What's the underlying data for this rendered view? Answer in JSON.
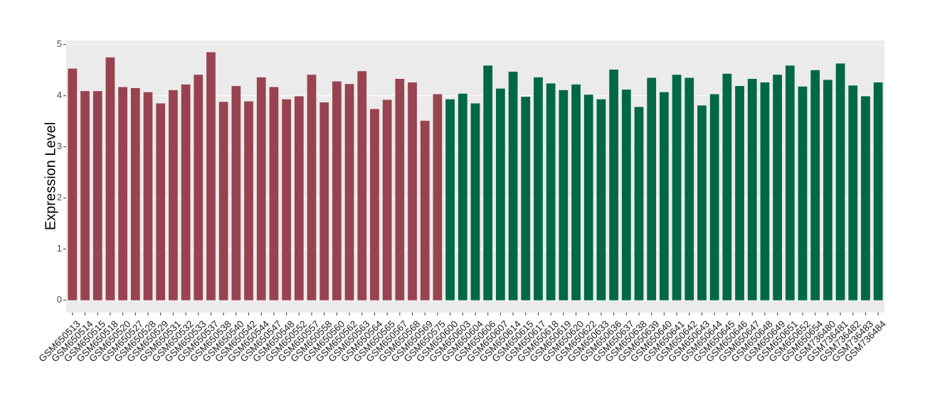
{
  "chart_data": {
    "type": "bar",
    "y_label": "Expression Level",
    "categories": [
      "GSM650513",
      "GSM650514",
      "GSM650515",
      "GSM650518",
      "GSM650520",
      "GSM650527",
      "GSM650528",
      "GSM650529",
      "GSM650531",
      "GSM650532",
      "GSM650533",
      "GSM650537",
      "GSM650538",
      "GSM650540",
      "GSM650542",
      "GSM650544",
      "GSM650547",
      "GSM650548",
      "GSM650552",
      "GSM650557",
      "GSM650558",
      "GSM650560",
      "GSM650562",
      "GSM650563",
      "GSM650564",
      "GSM650565",
      "GSM650567",
      "GSM650568",
      "GSM650569",
      "GSM650575",
      "GSM650600",
      "GSM650603",
      "GSM650604",
      "GSM650606",
      "GSM650607",
      "GSM650614",
      "GSM650615",
      "GSM650617",
      "GSM650618",
      "GSM650619",
      "GSM650620",
      "GSM650622",
      "GSM650633",
      "GSM650636",
      "GSM650637",
      "GSM650638",
      "GSM650639",
      "GSM650640",
      "GSM650641",
      "GSM650642",
      "GSM650643",
      "GSM650644",
      "GSM650645",
      "GSM650646",
      "GSM650647",
      "GSM650648",
      "GSM650649",
      "GSM650651",
      "GSM650652",
      "GSM650654",
      "GSM736480",
      "GSM736481",
      "GSM736482",
      "GSM736483",
      "GSM736484"
    ],
    "series": [
      {
        "color": "#994350",
        "values": [
          4.53,
          4.09,
          4.09,
          4.75,
          4.17,
          4.15,
          4.07,
          3.85,
          4.11,
          4.22,
          4.41,
          4.85,
          3.88,
          4.19,
          3.89,
          4.36,
          4.17,
          3.93,
          3.99,
          4.41,
          3.87,
          4.28,
          4.23,
          4.48,
          3.74,
          3.92,
          4.33,
          4.26,
          3.51,
          4.03,
          null,
          null,
          null,
          null,
          null,
          null,
          null,
          null,
          null,
          null,
          null,
          null,
          null,
          null,
          null,
          null,
          null,
          null,
          null,
          null,
          null,
          null,
          null,
          null,
          null,
          null,
          null,
          null,
          null,
          null,
          null,
          null,
          null,
          null,
          null
        ]
      },
      {
        "color": "#006846",
        "values": [
          null,
          null,
          null,
          null,
          null,
          null,
          null,
          null,
          null,
          null,
          null,
          null,
          null,
          null,
          null,
          null,
          null,
          null,
          null,
          null,
          null,
          null,
          null,
          null,
          null,
          null,
          null,
          null,
          null,
          null,
          3.93,
          4.04,
          3.85,
          4.59,
          4.14,
          4.47,
          3.98,
          4.36,
          4.24,
          4.11,
          4.22,
          4.02,
          3.93,
          4.51,
          4.12,
          3.78,
          4.35,
          4.07,
          4.41,
          4.35,
          3.81,
          4.03,
          4.43,
          4.19,
          4.33,
          4.26,
          4.41,
          4.59,
          4.18,
          4.5,
          4.31,
          4.63,
          4.2,
          3.99,
          4.26
        ]
      }
    ],
    "ylim": [
      -0.24,
      5.08
    ],
    "yticks": [
      0,
      1,
      2,
      3,
      4,
      5
    ],
    "grid": true
  }
}
